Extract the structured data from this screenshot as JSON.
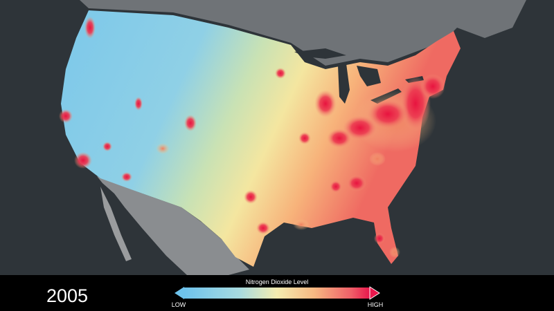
{
  "year": "2005",
  "legend": {
    "title": "Nitrogen Dioxide Level",
    "low": "LOW",
    "high": "HIGH"
  }
}
